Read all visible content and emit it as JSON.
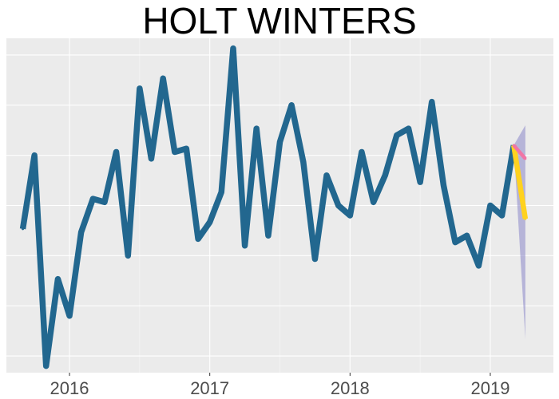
{
  "chart_data": {
    "type": "line",
    "title": "HOLT WINTERS",
    "xlabel": "",
    "ylabel": "",
    "x_ticks": [
      {
        "value": 2016,
        "label": "2016"
      },
      {
        "value": 2017,
        "label": "2017"
      },
      {
        "value": 2018,
        "label": "2018"
      },
      {
        "value": 2019,
        "label": "2019"
      }
    ],
    "xlim": [
      2015.55,
      2019.45
    ],
    "ylim": [
      0,
      100
    ],
    "y_gridlines": [
      5,
      20,
      35,
      50,
      65,
      80,
      95
    ],
    "y_tick_labels_shown": false,
    "grid": true,
    "legend": "none",
    "series": [
      {
        "role": "observed",
        "color": "#22678f",
        "x": [
          2015.667,
          2015.75,
          2015.833,
          2015.917,
          2016.0,
          2016.083,
          2016.167,
          2016.25,
          2016.333,
          2016.417,
          2016.5,
          2016.583,
          2016.667,
          2016.75,
          2016.833,
          2016.917,
          2017.0,
          2017.083,
          2017.167,
          2017.25,
          2017.333,
          2017.417,
          2017.5,
          2017.583,
          2017.667,
          2017.75,
          2017.833,
          2017.917,
          2018.0,
          2018.083,
          2018.167,
          2018.25,
          2018.333,
          2018.417,
          2018.5,
          2018.583,
          2018.667,
          2018.75,
          2018.833,
          2018.917,
          2019.0,
          2019.083,
          2019.167
        ],
        "y": [
          43,
          65,
          2,
          28,
          17,
          42,
          52,
          51,
          66,
          35,
          85,
          64,
          88,
          66,
          67,
          40,
          45,
          54,
          97,
          38,
          73,
          41,
          69,
          80,
          63,
          34,
          59,
          50,
          47,
          66,
          51,
          59,
          71,
          73,
          57,
          81,
          56,
          39,
          41,
          32,
          50,
          47,
          68
        ]
      },
      {
        "role": "forecast",
        "color": "#ffd21f",
        "x": [
          2019.167,
          2019.25
        ],
        "y": [
          68,
          46
        ]
      },
      {
        "role": "fitted",
        "color": "#f075a5",
        "x": [
          2019.167,
          2019.25
        ],
        "y": [
          68,
          64
        ]
      }
    ],
    "prediction_interval": {
      "color": "#8a86c8",
      "x": [
        2019.167,
        2019.25
      ],
      "lower": [
        68,
        10
      ],
      "upper": [
        68,
        74
      ]
    }
  }
}
